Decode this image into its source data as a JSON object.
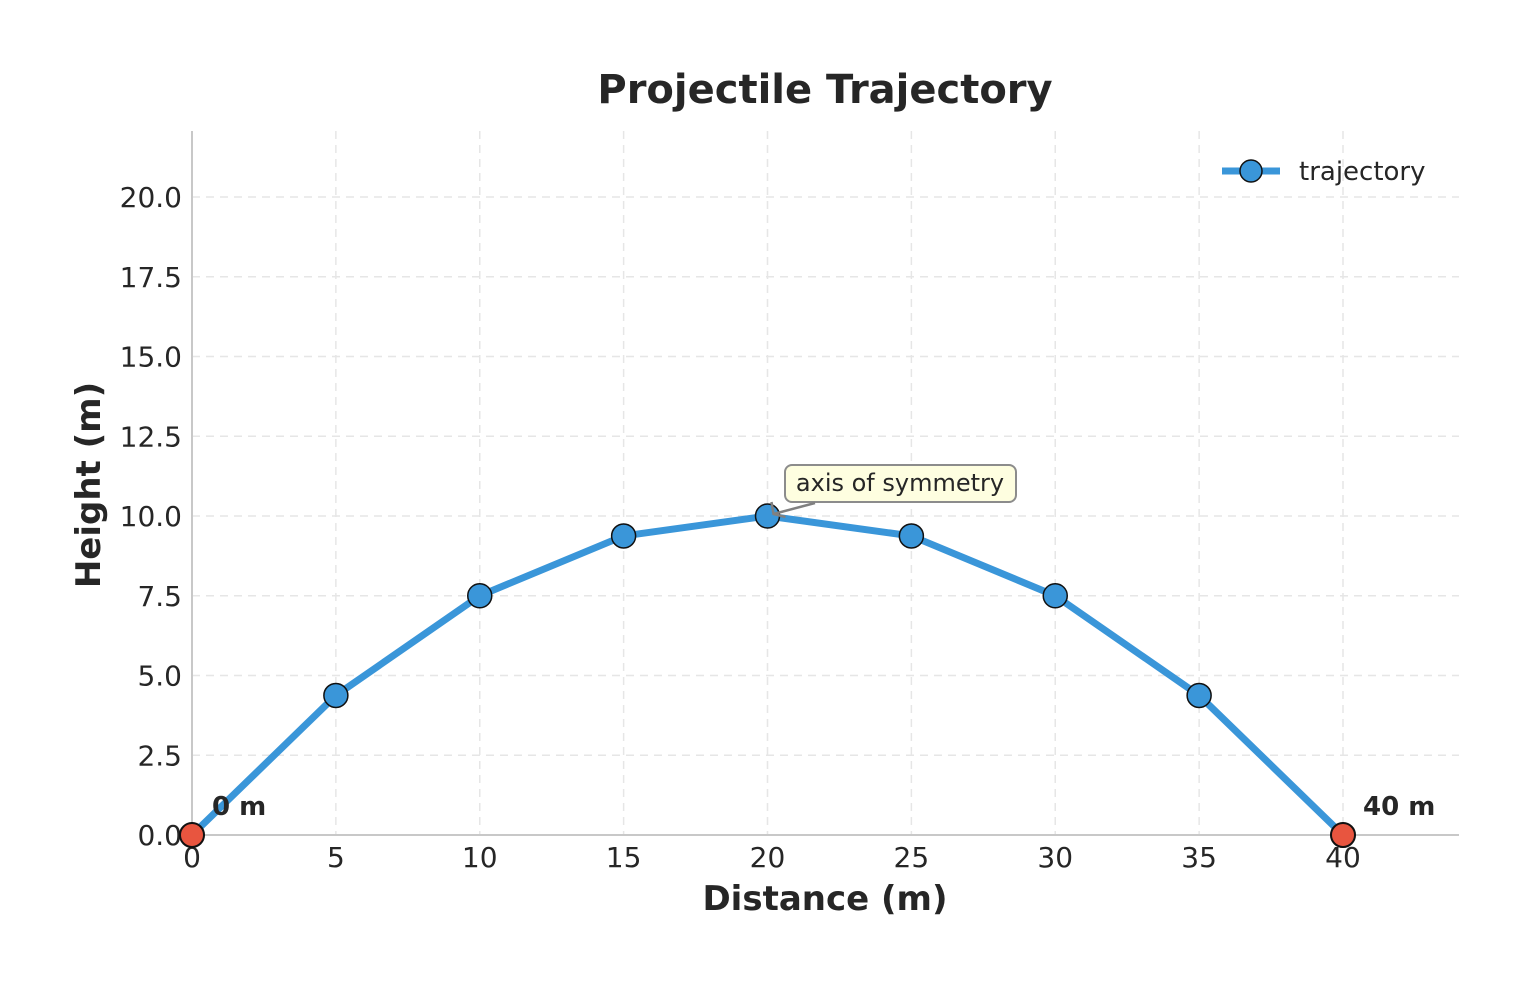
{
  "chart_data": {
    "type": "line",
    "title": "Projectile Trajectory",
    "xlabel": "Distance (m)",
    "ylabel": "Height (m)",
    "xlim": [
      0,
      44
    ],
    "ylim": [
      0,
      22
    ],
    "x_ticks": [
      0,
      5,
      10,
      15,
      20,
      25,
      30,
      35,
      40
    ],
    "y_ticks": [
      "0.0",
      "2.5",
      "5.0",
      "7.5",
      "10.0",
      "12.5",
      "15.0",
      "17.5",
      "20.0"
    ],
    "grid": true,
    "legend_position": "top-right",
    "series": [
      {
        "name": "trajectory",
        "color": "#3a96d9",
        "x": [
          0,
          5,
          10,
          15,
          20,
          25,
          30,
          35,
          40
        ],
        "y": [
          0,
          4.375,
          7.5,
          9.375,
          10,
          9.375,
          7.5,
          4.375,
          0
        ]
      }
    ],
    "endpoints": [
      {
        "x": 0,
        "y": 0,
        "label": "0 m",
        "color": "#e8553f"
      },
      {
        "x": 40,
        "y": 0,
        "label": "40 m",
        "color": "#e8553f"
      }
    ],
    "annotation": {
      "text": "axis of symmetry",
      "x": 20,
      "y": 10
    }
  }
}
